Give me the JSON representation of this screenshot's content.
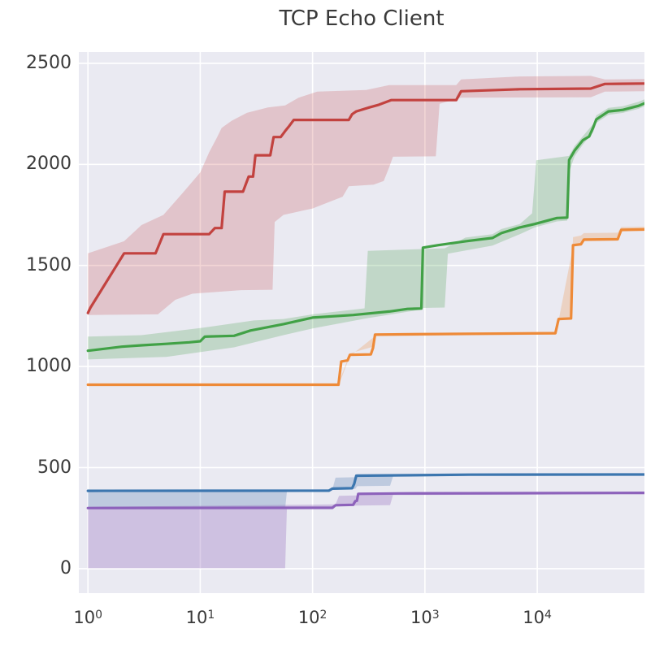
{
  "chart_data": {
    "type": "line",
    "title": "TCP Echo Client",
    "xlabel": "",
    "ylabel": "",
    "x_scale": "log",
    "xlim": [
      0.83,
      90000
    ],
    "ylim": [
      -121,
      2556
    ],
    "grid": true,
    "legend": "none",
    "background_color": "#eaeaf2",
    "grid_color": "#ffffff",
    "tick_color": "#3a3a3a",
    "y_ticks": [
      0,
      500,
      1000,
      1500,
      2000,
      2500
    ],
    "x_ticks": [
      {
        "base": "10",
        "exp": "0",
        "value": 1
      },
      {
        "base": "10",
        "exp": "1",
        "value": 10
      },
      {
        "base": "10",
        "exp": "2",
        "value": 100
      },
      {
        "base": "10",
        "exp": "3",
        "value": 1000
      },
      {
        "base": "10",
        "exp": "4",
        "value": 10000
      }
    ],
    "series": [
      {
        "name": "blue",
        "color": "#3c76af",
        "band_color": "rgba(76,118,176,0.28)",
        "line": [
          [
            1,
            385
          ],
          [
            140,
            386
          ],
          [
            150,
            396
          ],
          [
            225,
            398
          ],
          [
            235,
            420
          ],
          [
            245,
            460
          ],
          [
            600,
            462
          ],
          [
            2500,
            465
          ],
          [
            90000,
            466
          ]
        ],
        "band_upper": [
          [
            1,
            390
          ],
          [
            150,
            392
          ],
          [
            160,
            450
          ],
          [
            235,
            452
          ],
          [
            250,
            468
          ],
          [
            90000,
            470
          ]
        ],
        "band_lower": [
          [
            1,
            298
          ],
          [
            57,
            298
          ],
          [
            59,
            380
          ],
          [
            140,
            382
          ],
          [
            150,
            390
          ],
          [
            240,
            395
          ],
          [
            250,
            408
          ],
          [
            490,
            410
          ],
          [
            520,
            456
          ],
          [
            2500,
            460
          ],
          [
            90000,
            462
          ]
        ]
      },
      {
        "name": "orange",
        "color": "#ee8a38",
        "band_color": "rgba(238,138,56,0.25)",
        "line": [
          [
            1,
            910
          ],
          [
            170,
            910
          ],
          [
            180,
            1025
          ],
          [
            205,
            1030
          ],
          [
            215,
            1058
          ],
          [
            330,
            1060
          ],
          [
            345,
            1092
          ],
          [
            360,
            1158
          ],
          [
            2500,
            1162
          ],
          [
            14500,
            1165
          ],
          [
            15500,
            1235
          ],
          [
            20000,
            1238
          ],
          [
            20800,
            1600
          ],
          [
            24500,
            1605
          ],
          [
            26000,
            1628
          ],
          [
            52000,
            1630
          ],
          [
            56000,
            1676
          ],
          [
            90000,
            1678
          ]
        ],
        "band_upper": [
          [
            1,
            916
          ],
          [
            170,
            916
          ],
          [
            215,
            1065
          ],
          [
            345,
            1098
          ],
          [
            360,
            1165
          ],
          [
            14500,
            1172
          ],
          [
            15500,
            1242
          ],
          [
            20000,
            1246
          ],
          [
            20800,
            1640
          ],
          [
            24500,
            1648
          ],
          [
            26000,
            1660
          ],
          [
            52000,
            1662
          ],
          [
            56000,
            1690
          ],
          [
            90000,
            1692
          ]
        ],
        "band_lower": [
          [
            1,
            904
          ],
          [
            170,
            904
          ],
          [
            215,
            1052
          ],
          [
            360,
            1150
          ],
          [
            14500,
            1158
          ],
          [
            15500,
            1228
          ],
          [
            20800,
            1592
          ],
          [
            26000,
            1620
          ],
          [
            52000,
            1622
          ],
          [
            56000,
            1668
          ],
          [
            90000,
            1670
          ]
        ]
      },
      {
        "name": "green",
        "color": "#41a146",
        "band_color": "rgba(85,168,88,0.27)",
        "line": [
          [
            1,
            1078
          ],
          [
            2,
            1098
          ],
          [
            3,
            1105
          ],
          [
            5,
            1112
          ],
          [
            8,
            1120
          ],
          [
            10,
            1125
          ],
          [
            11,
            1148
          ],
          [
            20,
            1152
          ],
          [
            28,
            1178
          ],
          [
            55,
            1210
          ],
          [
            100,
            1242
          ],
          [
            230,
            1255
          ],
          [
            480,
            1272
          ],
          [
            700,
            1285
          ],
          [
            930,
            1287
          ],
          [
            960,
            1588
          ],
          [
            1300,
            1600
          ],
          [
            2300,
            1620
          ],
          [
            4000,
            1636
          ],
          [
            4800,
            1660
          ],
          [
            7000,
            1688
          ],
          [
            9500,
            1705
          ],
          [
            15000,
            1735
          ],
          [
            18500,
            1737
          ],
          [
            19200,
            2022
          ],
          [
            21500,
            2068
          ],
          [
            25500,
            2120
          ],
          [
            29000,
            2138
          ],
          [
            31500,
            2183
          ],
          [
            33500,
            2222
          ],
          [
            43000,
            2262
          ],
          [
            58000,
            2270
          ],
          [
            80000,
            2290
          ],
          [
            90000,
            2302
          ]
        ],
        "band_upper": [
          [
            1,
            1148
          ],
          [
            3,
            1155
          ],
          [
            10,
            1190
          ],
          [
            30,
            1228
          ],
          [
            55,
            1235
          ],
          [
            100,
            1258
          ],
          [
            290,
            1288
          ],
          [
            310,
            1572
          ],
          [
            1500,
            1585
          ],
          [
            2300,
            1638
          ],
          [
            4000,
            1655
          ],
          [
            4800,
            1680
          ],
          [
            7000,
            1705
          ],
          [
            9000,
            1758
          ],
          [
            9800,
            2020
          ],
          [
            19200,
            2042
          ],
          [
            21500,
            2090
          ],
          [
            25500,
            2140
          ],
          [
            31500,
            2200
          ],
          [
            33500,
            2242
          ],
          [
            43000,
            2280
          ],
          [
            58000,
            2288
          ],
          [
            80000,
            2310
          ],
          [
            90000,
            2322
          ]
        ],
        "band_lower": [
          [
            1,
            1035
          ],
          [
            5,
            1048
          ],
          [
            20,
            1095
          ],
          [
            55,
            1155
          ],
          [
            100,
            1188
          ],
          [
            300,
            1238
          ],
          [
            930,
            1282
          ],
          [
            960,
            1290
          ],
          [
            1500,
            1292
          ],
          [
            1600,
            1558
          ],
          [
            4000,
            1598
          ],
          [
            7000,
            1655
          ],
          [
            9500,
            1688
          ],
          [
            15000,
            1718
          ],
          [
            18500,
            1722
          ],
          [
            19200,
            1960
          ],
          [
            21500,
            2040
          ],
          [
            25500,
            2098
          ],
          [
            31500,
            2160
          ],
          [
            33500,
            2205
          ],
          [
            43000,
            2245
          ],
          [
            58000,
            2255
          ],
          [
            80000,
            2275
          ],
          [
            90000,
            2288
          ]
        ]
      },
      {
        "name": "red",
        "color": "#c2423f",
        "band_color": "rgba(196,66,63,0.22)",
        "line": [
          [
            1,
            1265
          ],
          [
            1.05,
            1290
          ],
          [
            2.1,
            1560
          ],
          [
            4,
            1560
          ],
          [
            4.7,
            1655
          ],
          [
            12,
            1655
          ],
          [
            13.5,
            1685
          ],
          [
            15.5,
            1685
          ],
          [
            16.5,
            1865
          ],
          [
            24,
            1865
          ],
          [
            27,
            1940
          ],
          [
            29.5,
            1940
          ],
          [
            31,
            2045
          ],
          [
            42,
            2045
          ],
          [
            45,
            2135
          ],
          [
            52,
            2135
          ],
          [
            57,
            2165
          ],
          [
            62,
            2190
          ],
          [
            68,
            2220
          ],
          [
            210,
            2220
          ],
          [
            225,
            2248
          ],
          [
            245,
            2262
          ],
          [
            320,
            2282
          ],
          [
            390,
            2295
          ],
          [
            500,
            2318
          ],
          [
            1900,
            2318
          ],
          [
            2100,
            2362
          ],
          [
            7000,
            2372
          ],
          [
            30000,
            2375
          ],
          [
            40000,
            2398
          ],
          [
            90000,
            2400
          ]
        ],
        "band_upper": [
          [
            1,
            1560
          ],
          [
            2.1,
            1620
          ],
          [
            3,
            1700
          ],
          [
            4.7,
            1750
          ],
          [
            7,
            1860
          ],
          [
            10,
            1960
          ],
          [
            12,
            2060
          ],
          [
            14,
            2130
          ],
          [
            15.5,
            2180
          ],
          [
            19,
            2215
          ],
          [
            26,
            2255
          ],
          [
            40,
            2282
          ],
          [
            57,
            2292
          ],
          [
            75,
            2330
          ],
          [
            110,
            2360
          ],
          [
            300,
            2368
          ],
          [
            480,
            2392
          ],
          [
            1900,
            2392
          ],
          [
            2100,
            2420
          ],
          [
            7000,
            2435
          ],
          [
            30000,
            2438
          ],
          [
            40000,
            2420
          ],
          [
            90000,
            2422
          ]
        ],
        "band_lower": [
          [
            1,
            1255
          ],
          [
            4.2,
            1258
          ],
          [
            6,
            1330
          ],
          [
            8.5,
            1360
          ],
          [
            23,
            1378
          ],
          [
            44,
            1380
          ],
          [
            46,
            1715
          ],
          [
            55,
            1750
          ],
          [
            100,
            1782
          ],
          [
            185,
            1840
          ],
          [
            210,
            1892
          ],
          [
            350,
            1900
          ],
          [
            430,
            1918
          ],
          [
            480,
            1985
          ],
          [
            520,
            2038
          ],
          [
            1250,
            2040
          ],
          [
            1350,
            2300
          ],
          [
            2100,
            2330
          ],
          [
            30000,
            2332
          ],
          [
            40000,
            2360
          ],
          [
            90000,
            2362
          ]
        ]
      },
      {
        "name": "purple",
        "color": "#8d62bb",
        "band_color": "rgba(141,98,187,0.30)",
        "line": [
          [
            1,
            300
          ],
          [
            150,
            301
          ],
          [
            160,
            314
          ],
          [
            230,
            316
          ],
          [
            240,
            334
          ],
          [
            248,
            336
          ],
          [
            255,
            370
          ],
          [
            600,
            372
          ],
          [
            90000,
            375
          ]
        ],
        "band_upper": [
          [
            1,
            306
          ],
          [
            160,
            318
          ],
          [
            172,
            360
          ],
          [
            250,
            362
          ],
          [
            260,
            376
          ],
          [
            600,
            378
          ],
          [
            90000,
            381
          ]
        ],
        "band_lower": [
          [
            1,
            2
          ],
          [
            57,
            2
          ],
          [
            59,
            294
          ],
          [
            150,
            296
          ],
          [
            160,
            308
          ],
          [
            245,
            312
          ],
          [
            490,
            314
          ],
          [
            520,
            364
          ],
          [
            90000,
            369
          ]
        ]
      }
    ]
  }
}
